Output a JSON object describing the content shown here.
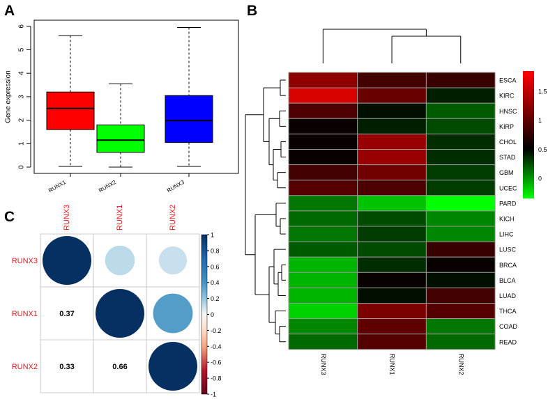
{
  "panels": {
    "a": {
      "letter": "A"
    },
    "b": {
      "letter": "B"
    },
    "c": {
      "letter": "C"
    }
  },
  "chart_data": [
    {
      "panel": "A",
      "type": "box",
      "ylabel": "Gene expression",
      "ylim": [
        0,
        6
      ],
      "yticks": [
        0,
        1,
        2,
        3,
        4,
        5,
        6
      ],
      "categories": [
        "RUNX1",
        "RUNX2",
        "RUNX3"
      ],
      "colors": [
        "#ff0000",
        "#00ff00",
        "#0000ff"
      ],
      "boxes": [
        {
          "name": "RUNX1",
          "min": 0.03,
          "q1": 1.6,
          "median": 2.5,
          "q3": 3.2,
          "max": 5.6
        },
        {
          "name": "RUNX2",
          "min": 0.0,
          "q1": 0.63,
          "median": 1.15,
          "q3": 1.8,
          "max": 3.55
        },
        {
          "name": "RUNX3",
          "min": 0.03,
          "q1": 1.05,
          "median": 1.98,
          "q3": 3.05,
          "max": 5.95
        }
      ]
    },
    {
      "panel": "B",
      "type": "heatmap",
      "columns": [
        "RUNX3",
        "RUNX1",
        "RUNX2"
      ],
      "rows": [
        "ESCA",
        "KIRC",
        "HNSC",
        "KIRP",
        "CHOL",
        "STAD",
        "GBM",
        "UCEC",
        "PARD",
        "KICH",
        "LIHC",
        "LUSC",
        "BRCA",
        "BLCA",
        "LUAD",
        "THCA",
        "COAD",
        "READ"
      ],
      "values": [
        [
          1.25,
          0.85,
          0.8
        ],
        [
          1.65,
          1.05,
          0.4
        ],
        [
          0.9,
          0.45,
          0.2
        ],
        [
          0.55,
          0.4,
          0.25
        ],
        [
          0.55,
          1.3,
          0.35
        ],
        [
          0.55,
          1.3,
          0.35
        ],
        [
          0.85,
          1.1,
          0.3
        ],
        [
          0.95,
          0.9,
          0.3
        ],
        [
          0.1,
          -0.15,
          -0.35
        ],
        [
          0.15,
          0.25,
          0.05
        ],
        [
          0.1,
          0.3,
          0.05
        ],
        [
          0.2,
          0.25,
          0.8
        ],
        [
          -0.1,
          0.35,
          0.55
        ],
        [
          -0.1,
          0.55,
          0.45
        ],
        [
          -0.1,
          0.45,
          0.85
        ],
        [
          -0.2,
          1.15,
          0.95
        ],
        [
          0.05,
          1.0,
          0.1
        ],
        [
          0.15,
          0.95,
          0.15
        ]
      ],
      "colorbar": {
        "ticks": [
          1.5,
          1,
          0.5,
          0
        ],
        "min": -0.35,
        "max": 1.85,
        "low_color": "#00ff00",
        "mid_color": "#000000",
        "high_color": "#ff0000"
      }
    },
    {
      "panel": "C",
      "type": "correlation",
      "labels": [
        "RUNX3",
        "RUNX1",
        "RUNX2"
      ],
      "label_color": "#e31a1c",
      "matrix": [
        [
          1.0,
          0.37,
          0.33
        ],
        [
          0.37,
          1.0,
          0.66
        ],
        [
          0.33,
          0.66,
          1.0
        ]
      ],
      "lower_labels": [
        {
          "row": 1,
          "col": 0,
          "text": "0.37"
        },
        {
          "row": 2,
          "col": 0,
          "text": "0.33"
        },
        {
          "row": 2,
          "col": 1,
          "text": "0.66"
        }
      ],
      "colorbar": {
        "ticks": [
          "1",
          "0.8",
          "0.6",
          "0.4",
          "0.2",
          "0",
          "-0.2",
          "-0.4",
          "-0.6",
          "-0.8",
          "-1"
        ]
      }
    }
  ]
}
